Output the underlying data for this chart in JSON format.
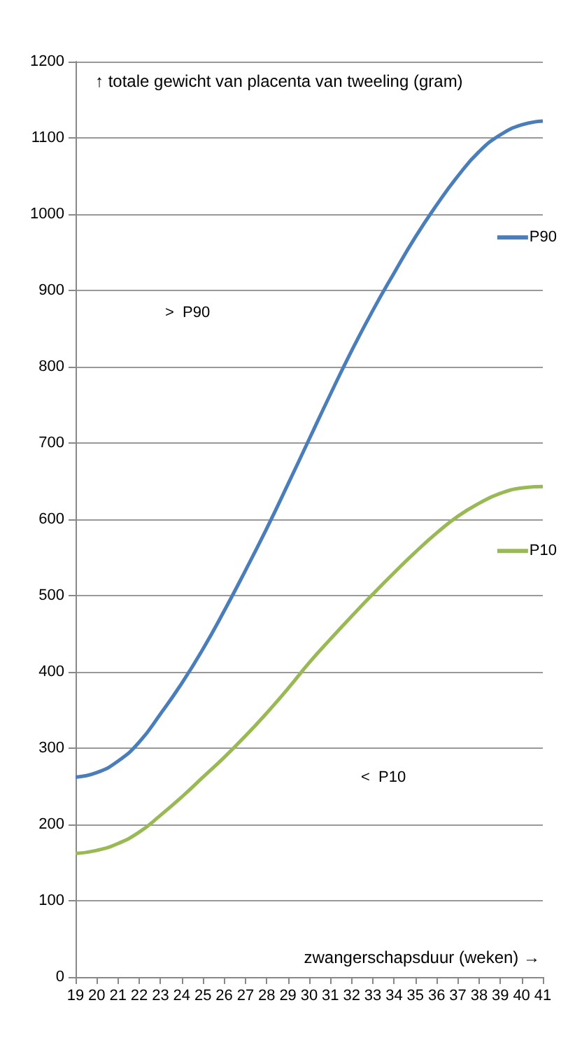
{
  "chart_data": {
    "type": "line",
    "ylabel": "↑ totale gewicht van placenta van tweeling (gram)",
    "xlabel": "zwangerschapsduur (weken) →",
    "categories": [
      "19",
      "20",
      "21",
      "22",
      "23",
      "24",
      "25",
      "26",
      "27",
      "28",
      "29",
      "30",
      "31",
      "32",
      "33",
      "34",
      "35",
      "36",
      "37",
      "38",
      "39",
      "40",
      "41"
    ],
    "series": [
      {
        "name": "P90",
        "color": "#4a7ebb",
        "values": [
          262,
          268,
          283,
          308,
          345,
          385,
          430,
          480,
          533,
          588,
          646,
          705,
          764,
          821,
          874,
          923,
          970,
          1012,
          1050,
          1082,
          1104,
          1117,
          1122
        ]
      },
      {
        "name": "P10",
        "color": "#98b954",
        "values": [
          162,
          166,
          175,
          190,
          212,
          236,
          262,
          288,
          316,
          346,
          378,
          412,
          443,
          473,
          502,
          530,
          557,
          582,
          604,
          621,
          634,
          641,
          643
        ]
      }
    ],
    "annotations": [
      ">  P90",
      "<  P10"
    ],
    "ylim": [
      0,
      1200
    ],
    "yticks": [
      0,
      100,
      200,
      300,
      400,
      500,
      600,
      700,
      800,
      900,
      1000,
      1100,
      1200
    ],
    "grid": "y",
    "legend": "right",
    "marker": "none",
    "line_style": "solid"
  }
}
